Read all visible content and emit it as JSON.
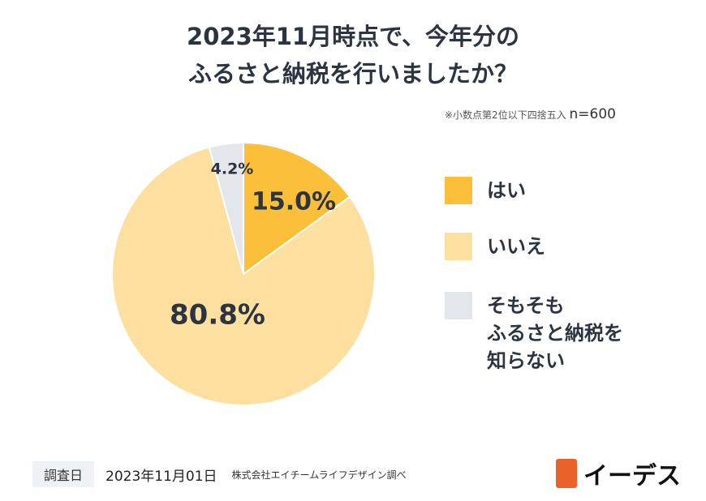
{
  "title_line1": "2023年11月時点で、今年分の",
  "title_line2": "ふるさと納税を行いましたか？",
  "note": "※小数点第2位以下四捨五入",
  "n": "n=600",
  "chart_data": {
    "type": "pie",
    "title": "2023年11月時点で、今年分のふるさと納税を行いましたか？",
    "slices": [
      {
        "label": "はい",
        "value": 15.0,
        "display": "15.0%",
        "color": "#FBBF3A"
      },
      {
        "label": "いいえ",
        "value": 80.8,
        "display": "80.8%",
        "color": "#FDE0A0"
      },
      {
        "label": "そもそもふるさと納税を知らない",
        "display": "4.2%",
        "value": 4.2,
        "color": "#E3E7EC"
      }
    ],
    "start": "top",
    "direction": "clockwise",
    "legend": "right"
  },
  "legend": [
    {
      "lines": [
        "はい"
      ]
    },
    {
      "lines": [
        "いいえ"
      ]
    },
    {
      "lines": [
        "そもそも",
        "ふるさと納税を",
        "知らない"
      ]
    }
  ],
  "footer": {
    "tag": "調査日",
    "date": "2023年11月01日",
    "source": "株式会社エイチームライフデザイン調べ"
  },
  "logo": "イーデス"
}
